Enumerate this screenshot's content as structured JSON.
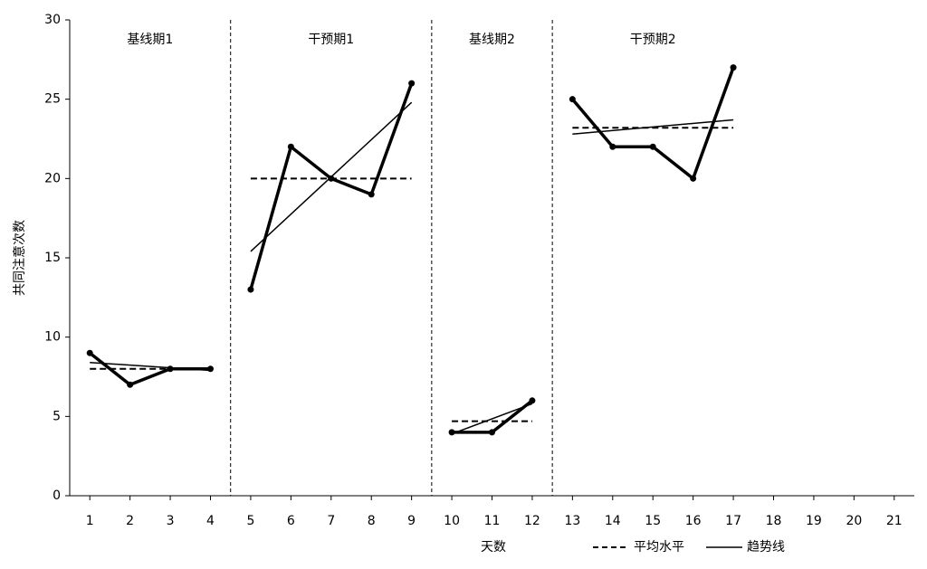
{
  "chart_data": {
    "type": "line",
    "xlabel": "天数",
    "ylabel": "共同注意次数",
    "xlim": [
      0.5,
      21.5
    ],
    "xticks": [
      1,
      2,
      3,
      4,
      5,
      6,
      7,
      8,
      9,
      10,
      11,
      12,
      13,
      14,
      15,
      16,
      17,
      18,
      19,
      20,
      21
    ],
    "ylim": [
      0,
      30
    ],
    "yticks": [
      0,
      5,
      10,
      15,
      20,
      25,
      30
    ],
    "color": "#000000",
    "dividers": [
      4.5,
      9.5,
      12.5
    ],
    "legend": {
      "mean": "平均水平",
      "trend": "趋势线"
    },
    "phases": [
      {
        "label": "基线期1",
        "x": [
          1,
          2,
          3,
          4
        ],
        "values": [
          9,
          7,
          8,
          8
        ],
        "mean": 8,
        "trend": [
          8.4,
          7.9
        ]
      },
      {
        "label": "干预期1",
        "x": [
          5,
          6,
          7,
          8,
          9
        ],
        "values": [
          13,
          22,
          20,
          19,
          26
        ],
        "mean": 20,
        "trend": [
          15.4,
          24.8
        ]
      },
      {
        "label": "基线期2",
        "x": [
          10,
          11,
          12
        ],
        "values": [
          4,
          4,
          6
        ],
        "mean": 4.7,
        "trend": [
          3.9,
          5.8
        ]
      },
      {
        "label": "干预期2",
        "x": [
          13,
          14,
          15,
          16,
          17
        ],
        "values": [
          25,
          22,
          22,
          20,
          27
        ],
        "mean": 23.2,
        "trend": [
          22.8,
          23.7
        ]
      }
    ]
  }
}
